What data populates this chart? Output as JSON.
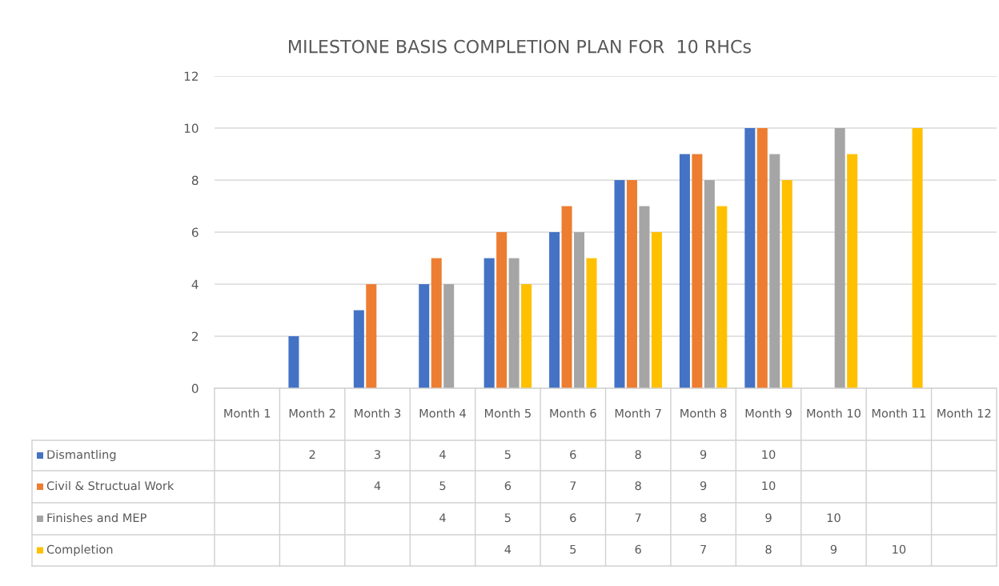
{
  "chart_data": {
    "type": "bar",
    "title": "MILESTONE BASIS COMPLETION PLAN FOR  10 RHCs",
    "categories": [
      "Month 1",
      "Month 2",
      "Month 3",
      "Month 4",
      "Month 5",
      "Month 6",
      "Month 7",
      "Month 8",
      "Month 9",
      "Month 10",
      "Month 11",
      "Month 12"
    ],
    "series": [
      {
        "name": "Dismantling",
        "color": "#4472c4",
        "values": [
          null,
          2,
          3,
          4,
          5,
          6,
          8,
          9,
          10,
          null,
          null,
          null
        ]
      },
      {
        "name": "Civil & Structual Work",
        "color": "#ed7d31",
        "values": [
          null,
          null,
          4,
          5,
          6,
          7,
          8,
          9,
          10,
          null,
          null,
          null
        ]
      },
      {
        "name": "Finishes and MEP",
        "color": "#a5a5a5",
        "values": [
          null,
          null,
          null,
          4,
          5,
          6,
          7,
          8,
          9,
          10,
          null,
          null
        ]
      },
      {
        "name": "Completion",
        "color": "#ffc000",
        "values": [
          null,
          null,
          null,
          null,
          4,
          5,
          6,
          7,
          8,
          9,
          10,
          null
        ]
      }
    ],
    "ylim": [
      0,
      12
    ],
    "yticks": [
      0,
      2,
      4,
      6,
      8,
      10,
      12
    ],
    "grid": "y",
    "legend": "bottom",
    "data_labels": true
  }
}
